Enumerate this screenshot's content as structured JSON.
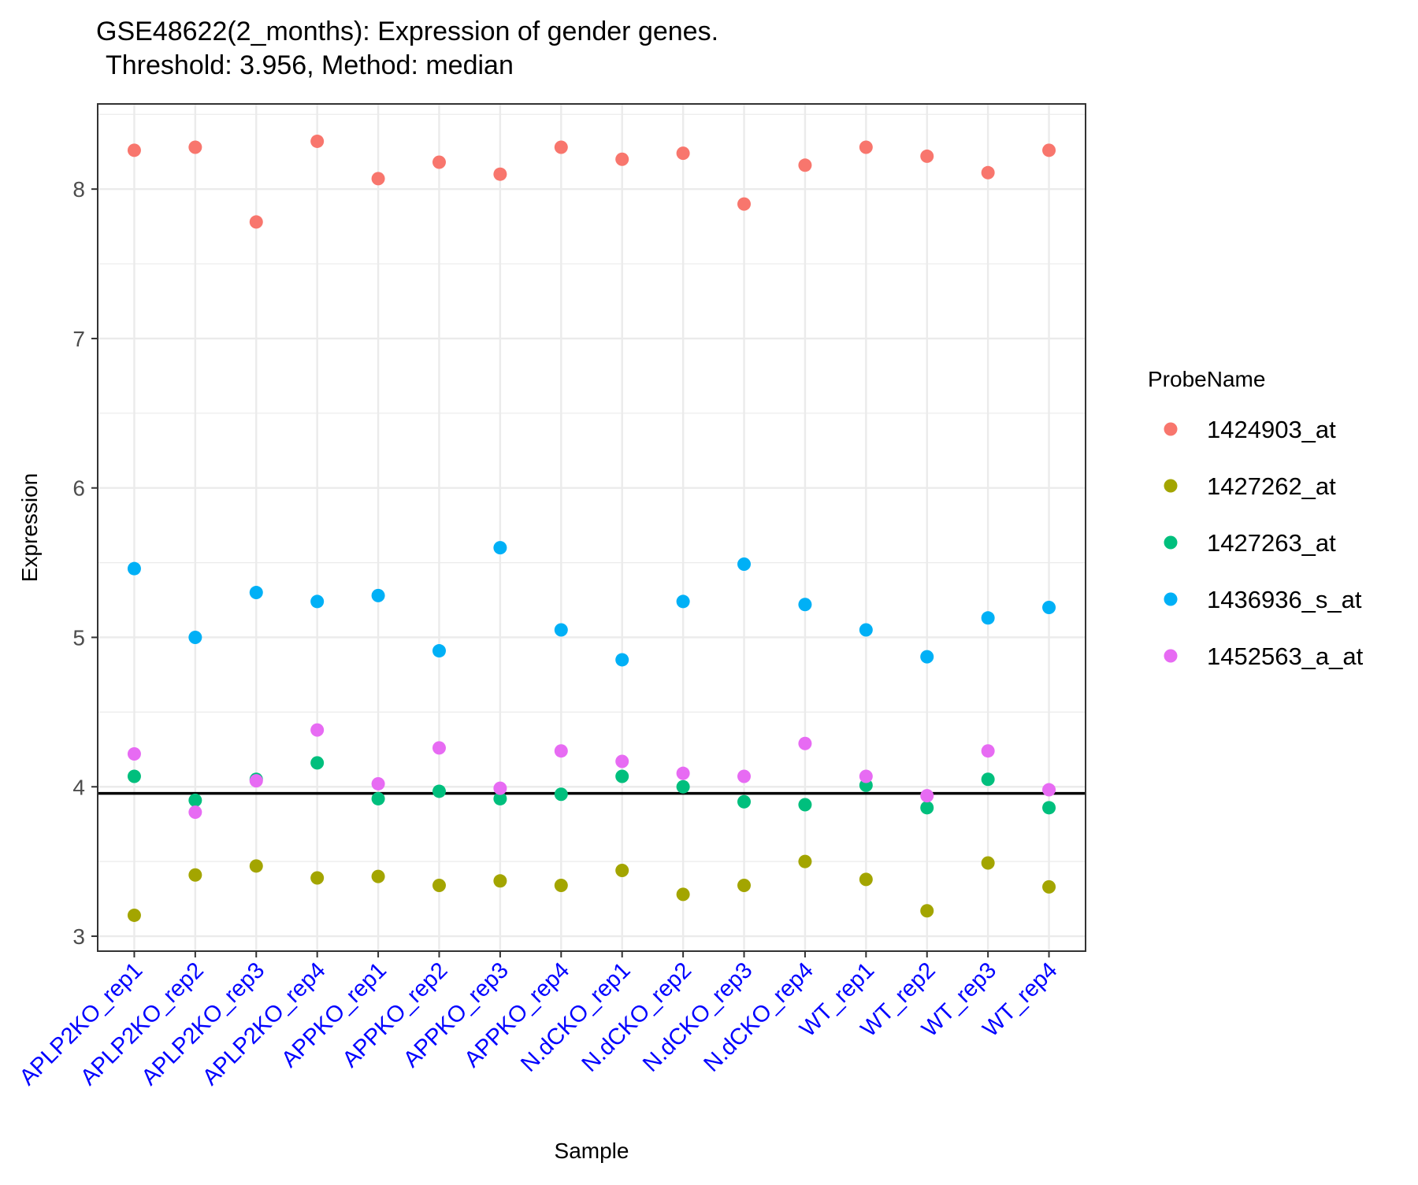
{
  "chart_data": {
    "type": "scatter",
    "title": "GSE48622(2_months): Expression of gender genes.",
    "subtitle": "Threshold: 3.956, Method: median",
    "xlabel": "Sample",
    "ylabel": "Expression",
    "ylim": [
      2.9,
      8.57
    ],
    "yticks": [
      3,
      4,
      5,
      6,
      7,
      8
    ],
    "grid": true,
    "threshold": 3.956,
    "categories": [
      "APLP2KO_rep1",
      "APLP2KO_rep2",
      "APLP2KO_rep3",
      "APLP2KO_rep4",
      "APPKO_rep1",
      "APPKO_rep2",
      "APPKO_rep3",
      "APPKO_rep4",
      "N.dCKO_rep1",
      "N.dCKO_rep2",
      "N.dCKO_rep3",
      "N.dCKO_rep4",
      "WT_rep1",
      "WT_rep2",
      "WT_rep3",
      "WT_rep4"
    ],
    "tick_label_color": "#0000FF",
    "legend": {
      "title": "ProbeName",
      "position": "right"
    },
    "series": [
      {
        "name": "1424903_at",
        "color": "#F8766D",
        "values": [
          8.26,
          8.28,
          7.78,
          8.32,
          8.07,
          8.18,
          8.1,
          8.28,
          8.2,
          8.24,
          7.9,
          8.16,
          8.28,
          8.22,
          8.11,
          8.26
        ]
      },
      {
        "name": "1427262_at",
        "color": "#A3A500",
        "values": [
          3.14,
          3.41,
          3.47,
          3.39,
          3.4,
          3.34,
          3.37,
          3.34,
          3.44,
          3.28,
          3.34,
          3.5,
          3.38,
          3.17,
          3.49,
          3.33
        ]
      },
      {
        "name": "1427263_at",
        "color": "#00BF7D",
        "values": [
          4.07,
          3.91,
          4.05,
          4.16,
          3.92,
          3.97,
          3.92,
          3.95,
          4.07,
          4.0,
          3.9,
          3.88,
          4.01,
          3.86,
          4.05,
          3.86
        ]
      },
      {
        "name": "1436936_s_at",
        "color": "#00B0F6",
        "values": [
          5.46,
          5.0,
          5.3,
          5.24,
          5.28,
          4.91,
          5.6,
          5.05,
          4.85,
          5.24,
          5.49,
          5.22,
          5.05,
          4.87,
          5.13,
          5.2
        ]
      },
      {
        "name": "1452563_a_at",
        "color": "#E76BF3",
        "values": [
          4.22,
          3.83,
          4.04,
          4.38,
          4.02,
          4.26,
          3.99,
          4.24,
          4.17,
          4.09,
          4.07,
          4.29,
          4.07,
          3.94,
          4.24,
          3.98
        ]
      }
    ]
  }
}
